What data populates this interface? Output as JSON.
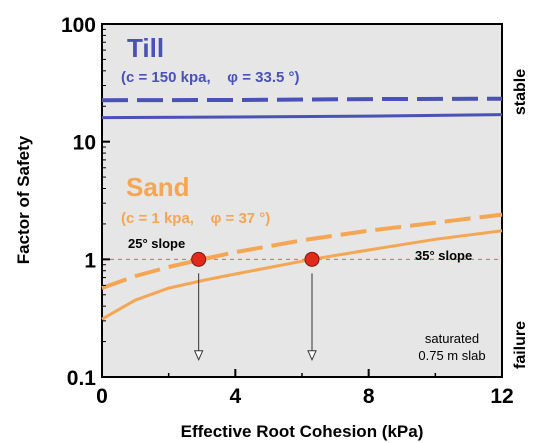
{
  "colors": {
    "till": "#4a52b8",
    "sand": "#f5a653",
    "failure_line": "#e85c5c",
    "marker_fill": "#e02a1c",
    "plot_bg": "#e6e6e6",
    "arrow": "#333333"
  },
  "chart_data": {
    "type": "line",
    "xlabel": "Effective Root Cohesion (kPa)",
    "ylabel": "Factor of Safety",
    "xlim": [
      0,
      12
    ],
    "ylim": [
      0.1,
      100
    ],
    "yscale": "log",
    "x_ticks": [
      0,
      4,
      8,
      12
    ],
    "x_tick_labels": [
      "0",
      "4",
      "8",
      "12"
    ],
    "y_ticks": [
      0.1,
      1,
      10,
      100
    ],
    "y_tick_labels": [
      "0.1",
      "1",
      "10",
      "100"
    ],
    "grid": false,
    "failure_threshold": 1,
    "right_labels": {
      "top": "stable",
      "bottom": "failure"
    },
    "groups": [
      {
        "title": "Till",
        "params": "(c = 150 kpa,    φ = 33.5 °)"
      },
      {
        "title": "Sand",
        "params": "(c = 1 kpa,    φ = 37 °)"
      }
    ],
    "annotations": {
      "slope_25": "25° slope",
      "slope_35": "35° slope",
      "note_line1": "saturated",
      "note_line2": "0.75 m slab"
    },
    "series": [
      {
        "material": "till",
        "slope": "25",
        "style": "dashed",
        "x": [
          0,
          4,
          8,
          12
        ],
        "y": [
          22.5,
          22.6,
          23.0,
          23.2
        ]
      },
      {
        "material": "till",
        "slope": "35",
        "style": "solid",
        "x": [
          0,
          4,
          8,
          12
        ],
        "y": [
          16.0,
          16.2,
          16.5,
          17.0
        ]
      },
      {
        "material": "sand",
        "slope": "25",
        "style": "dashed",
        "x": [
          0,
          1,
          2,
          3,
          4,
          6,
          8,
          10,
          12
        ],
        "y": [
          0.57,
          0.72,
          0.86,
          1.0,
          1.15,
          1.45,
          1.75,
          2.05,
          2.4
        ]
      },
      {
        "material": "sand",
        "slope": "35",
        "style": "solid",
        "x": [
          0,
          1,
          2,
          3,
          4,
          6.3,
          8,
          10,
          12
        ],
        "y": [
          0.31,
          0.45,
          0.57,
          0.66,
          0.75,
          1.0,
          1.2,
          1.48,
          1.75
        ]
      }
    ],
    "failure_points": [
      {
        "x": 2.9,
        "y": 1
      },
      {
        "x": 6.3,
        "y": 1
      }
    ],
    "arrows_to": 0.14
  }
}
